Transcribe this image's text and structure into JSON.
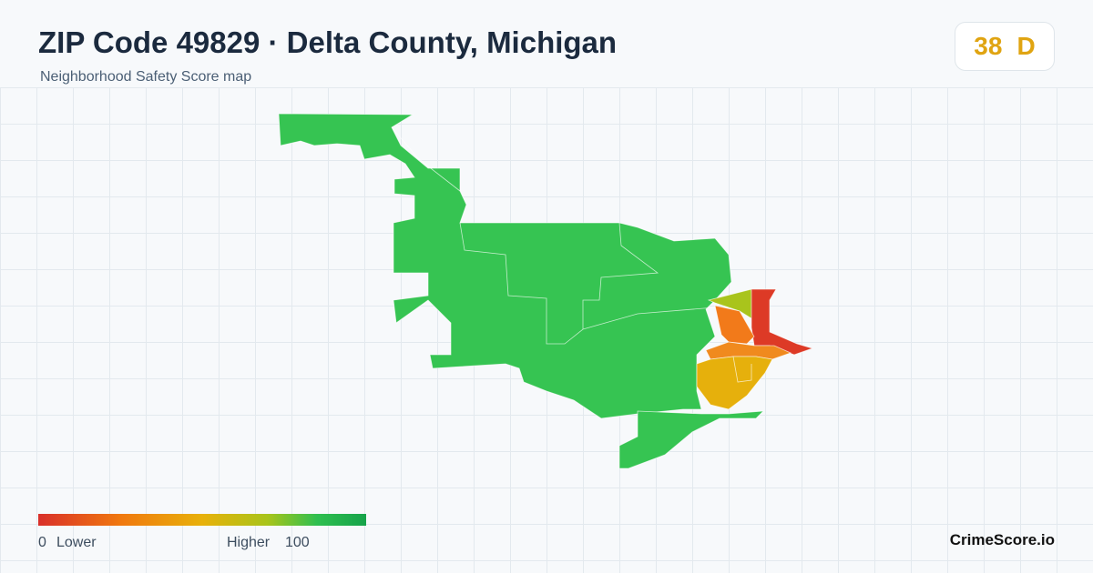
{
  "header": {
    "title": "ZIP Code 49829 · Delta County, Michigan",
    "subtitle": "Neighborhood Safety Score map"
  },
  "score": {
    "value": 38,
    "grade": "D"
  },
  "legend": {
    "min": 0,
    "min_label": "Lower",
    "max_label": "Higher",
    "max": 100
  },
  "footer": {
    "brand": "CrimeScore.io"
  }
}
